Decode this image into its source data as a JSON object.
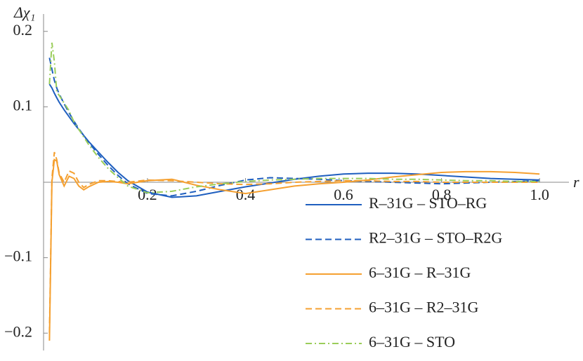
{
  "chart_data": {
    "type": "line",
    "y_label": "Δχ₁",
    "x_label": "r",
    "x": [
      0,
      0.005,
      0.01,
      0.015,
      0.02,
      0.03,
      0.04,
      0.05,
      0.06,
      0.07,
      0.08,
      0.1,
      0.12,
      0.14,
      0.16,
      0.2,
      0.25,
      0.3,
      0.35,
      0.4,
      0.45,
      0.5,
      0.55,
      0.6,
      0.65,
      0.7,
      0.75,
      0.8,
      0.85,
      0.9,
      0.95,
      1.0
    ],
    "series": [
      {
        "name": "R–31G – STO–RG",
        "color": "#1f5fbf",
        "dash": "solid",
        "values": [
          0.13,
          0.125,
          0.118,
          0.112,
          0.106,
          0.096,
          0.087,
          0.078,
          0.07,
          0.062,
          0.054,
          0.04,
          0.026,
          0.013,
          0.002,
          -0.013,
          -0.02,
          -0.018,
          -0.012,
          -0.006,
          -0.001,
          0.004,
          0.008,
          0.011,
          0.012,
          0.012,
          0.011,
          0.009,
          0.007,
          0.005,
          0.004,
          0.003
        ]
      },
      {
        "name": "R2–31G – STO–R2G",
        "color": "#1f5fbf",
        "dash": "dashed",
        "values": [
          0.165,
          0.15,
          0.135,
          0.125,
          0.117,
          0.104,
          0.092,
          0.081,
          0.071,
          0.062,
          0.053,
          0.037,
          0.022,
          0.009,
          -0.002,
          -0.015,
          -0.018,
          -0.012,
          -0.004,
          0.003,
          0.006,
          0.005,
          0.004,
          0.002,
          0.001,
          0,
          -0.001,
          -0.002,
          -0.001,
          0,
          0.001,
          0.002
        ]
      },
      {
        "name": "6–31G – R–31G",
        "color": "#f5a030",
        "dash": "solid",
        "values": [
          -0.21,
          0,
          0.03,
          0.028,
          0.01,
          -0.005,
          0.008,
          0.005,
          -0.005,
          -0.01,
          -0.006,
          0,
          0.001,
          0,
          -0.002,
          0.002,
          0.004,
          -0.004,
          -0.01,
          -0.015,
          -0.01,
          -0.005,
          -0.002,
          0,
          0.003,
          0.007,
          0.01,
          0.013,
          0.014,
          0.014,
          0.013,
          0.011
        ]
      },
      {
        "name": "6–31G – R2–31G",
        "color": "#f5a030",
        "dash": "dashed",
        "values": [
          -0.2,
          0.005,
          0.04,
          0.03,
          0.012,
          0,
          0.015,
          0.012,
          0,
          -0.007,
          -0.003,
          0.002,
          0.002,
          0.001,
          0,
          0.003,
          0.002,
          0,
          -0.002,
          -0.003,
          -0.002,
          0,
          0.001,
          0.002,
          0.002,
          0.001,
          0.001,
          0,
          0,
          0,
          0,
          0
        ]
      },
      {
        "name": "6–31G – STO",
        "color": "#9acd5a",
        "dash": "dashdot",
        "values": [
          0.13,
          0.185,
          0.16,
          0.12,
          0.115,
          0.105,
          0.095,
          0.08,
          0.07,
          0.06,
          0.05,
          0.033,
          0.018,
          0.006,
          -0.005,
          -0.014,
          -0.012,
          -0.006,
          -0.002,
          0.001,
          0.003,
          0.004,
          0.005,
          0.005,
          0.005,
          0.004,
          0.004,
          0.003,
          0.002,
          0.002,
          0.001,
          0.001
        ]
      }
    ],
    "xlim": [
      -0.012,
      1.06
    ],
    "ylim": [
      -0.223,
      0.223
    ],
    "xticks": [
      0.2,
      0.4,
      0.6,
      0.8,
      {
        "value": 1,
        "label": "1.0"
      }
    ],
    "yticks": [
      {
        "value": -0.2,
        "label": "−0.2"
      },
      {
        "value": -0.1,
        "label": "−0.1"
      },
      0.1,
      0.2
    ],
    "legend": "lower right"
  }
}
